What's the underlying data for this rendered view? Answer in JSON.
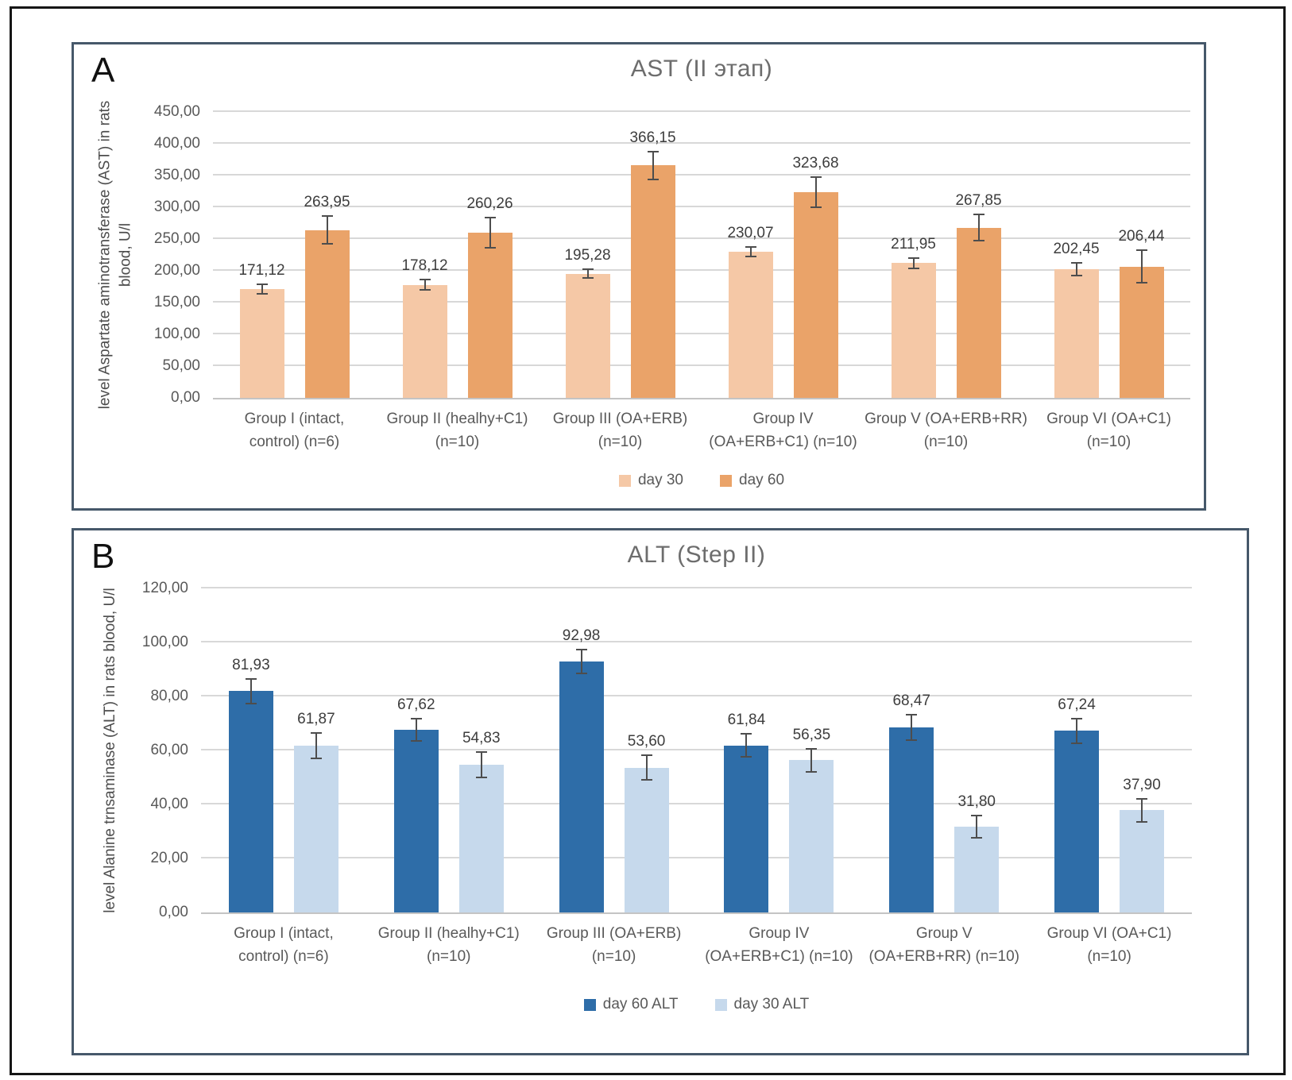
{
  "chart_data": [
    {
      "type": "bar",
      "panel_letter": "A",
      "title": "AST (II этап)",
      "ylabel": "level Aspartate aminotransferase (AST) in rats\nblood, U/l",
      "ylim": [
        0,
        450
      ],
      "ytick_step": 50,
      "ytick_labels": [
        "0,00",
        "50,00",
        "100,00",
        "150,00",
        "200,00",
        "250,00",
        "300,00",
        "350,00",
        "400,00",
        "450,00"
      ],
      "grid": true,
      "legend_position": "bottom",
      "error_bars": true,
      "categories": [
        "Group I (intact,\ncontrol) (n=6)",
        "Group II (healhy+C1)\n(n=10)",
        "Group III (OA+ERB)\n(n=10)",
        "Group IV\n(OA+ERB+C1) (n=10)",
        "Group V (OA+ERB+RR)\n(n=10)",
        "Group VI (OA+C1)\n(n=10)"
      ],
      "series": [
        {
          "name": "day 30",
          "color": "#F5C8A6",
          "values": [
            171.12,
            178.12,
            195.28,
            230.07,
            211.95,
            202.45
          ],
          "errors": [
            9,
            9,
            8,
            9,
            9,
            11
          ]
        },
        {
          "name": "day 60",
          "color": "#EAA369",
          "values": [
            263.95,
            260.26,
            366.15,
            323.68,
            267.85,
            206.44
          ],
          "errors": [
            23,
            25,
            23,
            25,
            22,
            27
          ]
        }
      ]
    },
    {
      "type": "bar",
      "panel_letter": "B",
      "title": "ALT (Step II)",
      "ylabel": "level Alanine trnsaminase (ALT) in rats blood, U/l",
      "ylim": [
        0,
        120
      ],
      "ytick_step": 20,
      "ytick_labels": [
        "0,00",
        "20,00",
        "40,00",
        "60,00",
        "80,00",
        "100,00",
        "120,00"
      ],
      "grid": true,
      "legend_position": "bottom",
      "error_bars": true,
      "categories": [
        "Group I (intact,\ncontrol) (n=6)",
        "Group II (healhy+C1)\n(n=10)",
        "Group III (OA+ERB)\n(n=10)",
        "Group IV\n(OA+ERB+C1) (n=10)",
        "Group V\n(OA+ERB+RR) (n=10)",
        "Group VI (OA+C1)\n(n=10)"
      ],
      "series": [
        {
          "name": "day 60 ALT",
          "color": "#2E6DA8",
          "values": [
            81.93,
            67.62,
            92.98,
            61.84,
            68.47,
            67.24
          ],
          "errors": [
            4.8,
            4.5,
            4.8,
            4.6,
            5.0,
            4.8
          ]
        },
        {
          "name": "day 30 ALT",
          "color": "#C6D9EC",
          "values": [
            61.87,
            54.83,
            53.6,
            56.35,
            31.8,
            37.9
          ],
          "errors": [
            5.0,
            5.0,
            4.8,
            4.6,
            4.5,
            4.6
          ]
        }
      ]
    }
  ]
}
